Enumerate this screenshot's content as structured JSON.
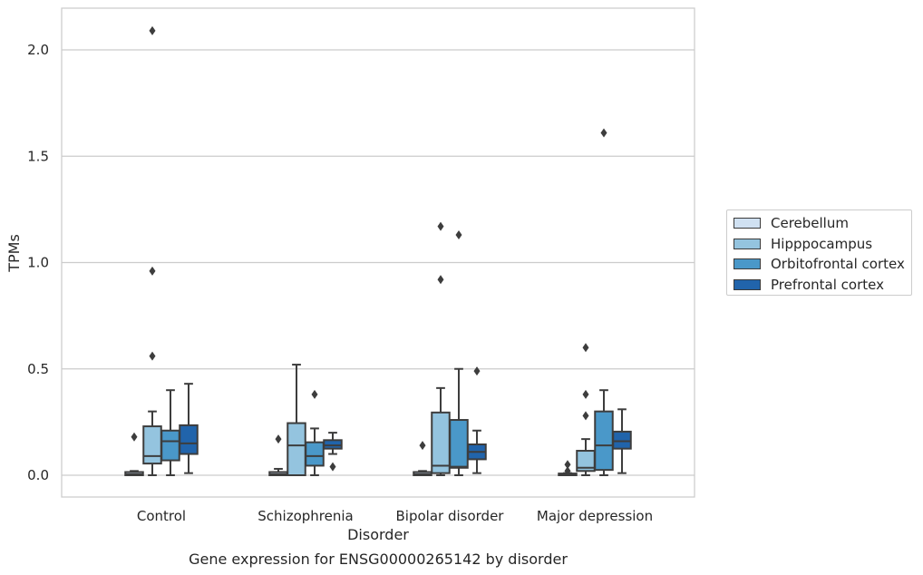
{
  "chart_data": {
    "type": "boxplot",
    "caption": "Gene expression for ENSG00000265142 by disorder",
    "xlabel": "Disorder",
    "ylabel": "TPMs",
    "ylim": [
      -0.1,
      2.2
    ],
    "yticks": [
      "0.0",
      "0.5",
      "1.0",
      "1.5",
      "2.0"
    ],
    "grid": "horizontal",
    "legend_position": "right",
    "categories": [
      "Control",
      "Schizophrenia",
      "Bipolar disorder",
      "Major depression"
    ],
    "series": [
      {
        "name": "Cerebellum",
        "color": "#d0e1f2",
        "boxes": [
          {
            "whislo": 0.0,
            "q1": 0.0,
            "med": 0.005,
            "q3": 0.015,
            "whishi": 0.02,
            "fliers": [
              0.18
            ]
          },
          {
            "whislo": 0.0,
            "q1": 0.0,
            "med": 0.005,
            "q3": 0.015,
            "whishi": 0.03,
            "fliers": [
              0.17
            ]
          },
          {
            "whislo": 0.0,
            "q1": 0.0,
            "med": 0.005,
            "q3": 0.015,
            "whishi": 0.02,
            "fliers": [
              0.14
            ]
          },
          {
            "whislo": 0.0,
            "q1": 0.0,
            "med": 0.003,
            "q3": 0.008,
            "whishi": 0.01,
            "fliers": [
              0.02,
              0.05
            ]
          }
        ]
      },
      {
        "name": "Hipppocampus",
        "color": "#94c4df",
        "boxes": [
          {
            "whislo": 0.0,
            "q1": 0.055,
            "med": 0.09,
            "q3": 0.23,
            "whishi": 0.3,
            "fliers": [
              0.56,
              0.96,
              2.09
            ]
          },
          {
            "whislo": 0.0,
            "q1": 0.0,
            "med": 0.14,
            "q3": 0.245,
            "whishi": 0.52,
            "fliers": []
          },
          {
            "whislo": 0.0,
            "q1": 0.01,
            "med": 0.045,
            "q3": 0.295,
            "whishi": 0.41,
            "fliers": [
              0.92,
              1.17
            ]
          },
          {
            "whislo": 0.0,
            "q1": 0.02,
            "med": 0.035,
            "q3": 0.115,
            "whishi": 0.17,
            "fliers": [
              0.28,
              0.38,
              0.6
            ]
          }
        ]
      },
      {
        "name": "Orbitofrontal cortex",
        "color": "#4a98c9",
        "boxes": [
          {
            "whislo": 0.0,
            "q1": 0.07,
            "med": 0.16,
            "q3": 0.21,
            "whishi": 0.4,
            "fliers": []
          },
          {
            "whislo": 0.0,
            "q1": 0.045,
            "med": 0.09,
            "q3": 0.155,
            "whishi": 0.22,
            "fliers": [
              0.38
            ]
          },
          {
            "whislo": 0.0,
            "q1": 0.035,
            "med": 0.04,
            "q3": 0.26,
            "whishi": 0.5,
            "fliers": [
              1.13
            ]
          },
          {
            "whislo": 0.0,
            "q1": 0.025,
            "med": 0.14,
            "q3": 0.3,
            "whishi": 0.4,
            "fliers": [
              1.61
            ]
          }
        ]
      },
      {
        "name": "Prefrontal cortex",
        "color": "#2164ab",
        "boxes": [
          {
            "whislo": 0.01,
            "q1": 0.1,
            "med": 0.15,
            "q3": 0.235,
            "whishi": 0.43,
            "fliers": []
          },
          {
            "whislo": 0.1,
            "q1": 0.125,
            "med": 0.14,
            "q3": 0.165,
            "whishi": 0.2,
            "fliers": [
              0.04
            ]
          },
          {
            "whislo": 0.01,
            "q1": 0.075,
            "med": 0.11,
            "q3": 0.145,
            "whishi": 0.21,
            "fliers": [
              0.49
            ]
          },
          {
            "whislo": 0.01,
            "q1": 0.125,
            "med": 0.16,
            "q3": 0.205,
            "whishi": 0.31,
            "fliers": []
          }
        ]
      }
    ]
  }
}
